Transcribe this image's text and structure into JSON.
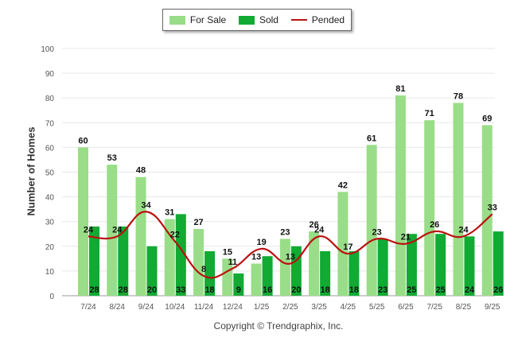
{
  "chart_data": {
    "type": "bar",
    "ylabel": "Number of Homes",
    "ylim": [
      0,
      100
    ],
    "yticks": [
      0,
      10,
      20,
      30,
      40,
      50,
      60,
      70,
      80,
      90,
      100
    ],
    "categories": [
      "7/24",
      "8/24",
      "9/24",
      "10/24",
      "11/24",
      "12/24",
      "1/25",
      "2/25",
      "3/25",
      "4/25",
      "5/25",
      "6/25",
      "7/25",
      "8/25",
      "9/25"
    ],
    "series": [
      {
        "name": "For Sale",
        "type": "bar",
        "color": "#99dd88",
        "values": [
          60,
          53,
          48,
          31,
          27,
          15,
          13,
          23,
          26,
          42,
          61,
          81,
          71,
          78,
          69
        ]
      },
      {
        "name": "Sold",
        "type": "bar",
        "color": "#11aa33",
        "values": [
          28,
          28,
          20,
          33,
          18,
          9,
          16,
          20,
          18,
          18,
          23,
          25,
          25,
          24,
          26
        ]
      },
      {
        "name": "Pended",
        "type": "line",
        "color": "#bb1111",
        "values": [
          24,
          24,
          34,
          22,
          8,
          11,
          19,
          13,
          24,
          17,
          23,
          21,
          26,
          24,
          33
        ]
      }
    ]
  },
  "footer": "Copyright © Trendgraphix, Inc."
}
